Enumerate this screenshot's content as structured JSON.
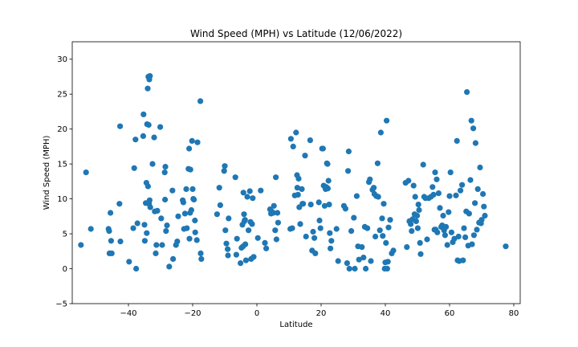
{
  "chart_data": {
    "type": "scatter",
    "title": "Wind Speed (MPH) vs Latitude (12/06/2022)",
    "xlabel": "Latitude",
    "ylabel": "Wind Speed (MPH)",
    "xlim": [
      -57.5,
      82
    ],
    "ylim": [
      -5,
      32.5
    ],
    "xticks": [
      -40,
      -20,
      0,
      20,
      40,
      60,
      80
    ],
    "yticks": [
      -5,
      0,
      5,
      10,
      15,
      20,
      25,
      30
    ],
    "xtick_labels": [
      "−40",
      "−20",
      "0",
      "20",
      "40",
      "60",
      "80"
    ],
    "ytick_labels": [
      "−5",
      "0",
      "5",
      "10",
      "15",
      "20",
      "25",
      "30"
    ],
    "grid": false,
    "marker_color": "#1f77b4",
    "points": [
      [
        -54.8,
        3.4
      ],
      [
        -53.2,
        13.8
      ],
      [
        -51.7,
        5.7
      ],
      [
        -46.2,
        5.7
      ],
      [
        -46.0,
        5.4
      ],
      [
        -45.9,
        2.2
      ],
      [
        -45.6,
        8.0
      ],
      [
        -45.4,
        4.0
      ],
      [
        -45.2,
        2.2
      ],
      [
        -42.6,
        20.4
      ],
      [
        -42.8,
        9.3
      ],
      [
        -42.5,
        3.9
      ],
      [
        -39.8,
        1.0
      ],
      [
        -38.5,
        5.8
      ],
      [
        -38.2,
        14.4
      ],
      [
        -37.8,
        18.5
      ],
      [
        -37.6,
        0.0
      ],
      [
        -37.2,
        6.5
      ],
      [
        -35.4,
        19.0
      ],
      [
        -35.3,
        22.1
      ],
      [
        -35.0,
        6.3
      ],
      [
        -34.9,
        4.0
      ],
      [
        -34.6,
        9.4
      ],
      [
        -34.4,
        12.3
      ],
      [
        -34.3,
        5.1
      ],
      [
        -34.2,
        20.7
      ],
      [
        -34.0,
        25.8
      ],
      [
        -33.9,
        11.8
      ],
      [
        -33.8,
        27.5
      ],
      [
        -33.7,
        20.6
      ],
      [
        -33.6,
        9.3
      ],
      [
        -33.5,
        27.1
      ],
      [
        -33.4,
        9.8
      ],
      [
        -33.3,
        27.6
      ],
      [
        -33.2,
        8.8
      ],
      [
        -32.5,
        15.0
      ],
      [
        -32.0,
        18.8
      ],
      [
        -31.8,
        8.2
      ],
      [
        -31.5,
        2.2
      ],
      [
        -31.3,
        3.4
      ],
      [
        -31.0,
        8.3
      ],
      [
        -30.1,
        20.3
      ],
      [
        -29.8,
        7.2
      ],
      [
        -29.5,
        3.4
      ],
      [
        -28.7,
        13.8
      ],
      [
        -28.6,
        9.9
      ],
      [
        -28.5,
        14.6
      ],
      [
        -28.3,
        5.4
      ],
      [
        -28.0,
        6.2
      ],
      [
        -27.3,
        0.3
      ],
      [
        -26.3,
        11.2
      ],
      [
        -26.1,
        1.4
      ],
      [
        -25.2,
        3.4
      ],
      [
        -24.8,
        3.9
      ],
      [
        -24.5,
        7.5
      ],
      [
        -23.1,
        9.8
      ],
      [
        -22.9,
        9.5
      ],
      [
        -22.7,
        5.7
      ],
      [
        -22.4,
        7.9
      ],
      [
        -22.0,
        11.4
      ],
      [
        -21.8,
        5.8
      ],
      [
        -21.3,
        14.3
      ],
      [
        -21.1,
        17.2
      ],
      [
        -21.0,
        4.3
      ],
      [
        -20.8,
        8.0
      ],
      [
        -20.7,
        14.2
      ],
      [
        -20.4,
        8.4
      ],
      [
        -20.2,
        18.3
      ],
      [
        -20.0,
        11.4
      ],
      [
        -19.8,
        10.0
      ],
      [
        -19.6,
        9.9
      ],
      [
        -19.3,
        6.9
      ],
      [
        -19.2,
        5.2
      ],
      [
        -18.7,
        4.1
      ],
      [
        -18.5,
        18.1
      ],
      [
        -17.6,
        24.0
      ],
      [
        -17.5,
        2.2
      ],
      [
        -17.3,
        1.4
      ],
      [
        -12.4,
        7.8
      ],
      [
        -11.7,
        11.6
      ],
      [
        -11.4,
        9.1
      ],
      [
        -10.2,
        14.0
      ],
      [
        -10.0,
        14.7
      ],
      [
        -9.8,
        5.5
      ],
      [
        -9.5,
        3.6
      ],
      [
        -9.1,
        2.8
      ],
      [
        -9.0,
        1.9
      ],
      [
        -8.8,
        7.2
      ],
      [
        -6.7,
        13.1
      ],
      [
        -6.4,
        2.0
      ],
      [
        -6.2,
        4.3
      ],
      [
        -5.1,
        0.8
      ],
      [
        -4.8,
        3.0
      ],
      [
        -4.5,
        6.3
      ],
      [
        -4.3,
        3.2
      ],
      [
        -4.2,
        10.9
      ],
      [
        -4.0,
        7.8
      ],
      [
        -3.9,
        6.8
      ],
      [
        -3.7,
        7.0
      ],
      [
        -3.6,
        3.5
      ],
      [
        -3.4,
        1.2
      ],
      [
        -3.0,
        10.3
      ],
      [
        -2.6,
        5.5
      ],
      [
        -2.2,
        11.1
      ],
      [
        -2.0,
        6.7
      ],
      [
        -1.8,
        1.4
      ],
      [
        -1.5,
        6.4
      ],
      [
        -1.3,
        10.1
      ],
      [
        -1.0,
        1.7
      ],
      [
        0.3,
        4.4
      ],
      [
        1.2,
        11.2
      ],
      [
        2.5,
        3.7
      ],
      [
        2.9,
        2.9
      ],
      [
        4.1,
        8.5
      ],
      [
        4.4,
        7.9
      ],
      [
        4.6,
        8.2
      ],
      [
        5.1,
        8.0
      ],
      [
        5.3,
        9.0
      ],
      [
        5.7,
        5.5
      ],
      [
        5.9,
        13.1
      ],
      [
        6.1,
        4.2
      ],
      [
        6.4,
        8.0
      ],
      [
        6.6,
        6.6
      ],
      [
        10.4,
        5.7
      ],
      [
        10.6,
        18.6
      ],
      [
        11.0,
        5.8
      ],
      [
        11.3,
        17.5
      ],
      [
        11.8,
        10.5
      ],
      [
        12.2,
        19.5
      ],
      [
        12.5,
        13.4
      ],
      [
        12.6,
        11.6
      ],
      [
        12.8,
        10.6
      ],
      [
        13.0,
        12.9
      ],
      [
        13.2,
        8.8
      ],
      [
        13.5,
        6.4
      ],
      [
        14.0,
        11.4
      ],
      [
        14.2,
        9.3
      ],
      [
        14.4,
        9.3
      ],
      [
        15.0,
        16.2
      ],
      [
        15.3,
        4.6
      ],
      [
        16.6,
        18.4
      ],
      [
        16.8,
        9.2
      ],
      [
        17.2,
        2.6
      ],
      [
        17.5,
        5.3
      ],
      [
        17.9,
        4.4
      ],
      [
        18.2,
        2.2
      ],
      [
        19.3,
        9.5
      ],
      [
        19.5,
        6.9
      ],
      [
        19.8,
        5.8
      ],
      [
        20.3,
        17.2
      ],
      [
        20.6,
        17.2
      ],
      [
        20.8,
        11.9
      ],
      [
        21.1,
        9.0
      ],
      [
        21.4,
        11.4
      ],
      [
        21.6,
        11.7
      ],
      [
        21.8,
        15.1
      ],
      [
        22.0,
        15.0
      ],
      [
        22.1,
        11.5
      ],
      [
        22.3,
        12.6
      ],
      [
        22.5,
        9.2
      ],
      [
        22.7,
        5.1
      ],
      [
        22.9,
        2.9
      ],
      [
        23.2,
        4.0
      ],
      [
        24.8,
        5.7
      ],
      [
        25.3,
        1.1
      ],
      [
        27.1,
        9.0
      ],
      [
        27.6,
        8.6
      ],
      [
        28.1,
        0.8
      ],
      [
        28.4,
        14.0
      ],
      [
        28.6,
        16.8
      ],
      [
        28.8,
        0.0
      ],
      [
        29.4,
        5.4
      ],
      [
        30.2,
        7.3
      ],
      [
        30.5,
        0.0
      ],
      [
        31.1,
        10.4
      ],
      [
        31.5,
        3.2
      ],
      [
        31.8,
        1.3
      ],
      [
        32.7,
        3.1
      ],
      [
        33.2,
        1.6
      ],
      [
        33.6,
        6.0
      ],
      [
        33.9,
        0.0
      ],
      [
        34.4,
        5.8
      ],
      [
        34.9,
        12.4
      ],
      [
        35.2,
        12.8
      ],
      [
        35.5,
        1.1
      ],
      [
        36.0,
        11.3
      ],
      [
        36.4,
        11.6
      ],
      [
        36.6,
        10.7
      ],
      [
        36.9,
        4.6
      ],
      [
        37.2,
        10.4
      ],
      [
        37.6,
        15.1
      ],
      [
        37.8,
        10.3
      ],
      [
        38.3,
        5.5
      ],
      [
        38.6,
        19.5
      ],
      [
        39.0,
        7.2
      ],
      [
        39.2,
        4.7
      ],
      [
        39.5,
        9.3
      ],
      [
        39.8,
        0.0
      ],
      [
        40.0,
        0.9
      ],
      [
        40.2,
        3.7
      ],
      [
        40.4,
        21.2
      ],
      [
        40.6,
        0.0
      ],
      [
        40.8,
        1.0
      ],
      [
        41.0,
        5.9
      ],
      [
        41.5,
        7.0
      ],
      [
        42.0,
        2.2
      ],
      [
        42.5,
        2.6
      ],
      [
        46.3,
        12.3
      ],
      [
        46.7,
        3.1
      ],
      [
        47.2,
        12.6
      ],
      [
        47.5,
        6.8
      ],
      [
        47.9,
        6.4
      ],
      [
        48.2,
        5.4
      ],
      [
        48.5,
        7.1
      ],
      [
        48.8,
        11.9
      ],
      [
        49.1,
        7.8
      ],
      [
        49.3,
        10.3
      ],
      [
        49.6,
        6.8
      ],
      [
        49.9,
        7.6
      ],
      [
        50.1,
        5.8
      ],
      [
        50.3,
        9.2
      ],
      [
        50.5,
        8.4
      ],
      [
        50.8,
        3.7
      ],
      [
        51.0,
        2.1
      ],
      [
        51.8,
        14.9
      ],
      [
        52.1,
        10.3
      ],
      [
        52.5,
        10.1
      ],
      [
        53.0,
        4.2
      ],
      [
        53.5,
        10.1
      ],
      [
        54.2,
        10.3
      ],
      [
        54.7,
        11.7
      ],
      [
        55.0,
        10.6
      ],
      [
        55.3,
        5.6
      ],
      [
        55.5,
        13.8
      ],
      [
        55.7,
        5.6
      ],
      [
        56.0,
        12.8
      ],
      [
        56.2,
        5.2
      ],
      [
        56.6,
        10.8
      ],
      [
        57.0,
        8.7
      ],
      [
        57.4,
        6.0
      ],
      [
        57.7,
        6.2
      ],
      [
        58.0,
        7.6
      ],
      [
        58.3,
        5.5
      ],
      [
        58.6,
        4.8
      ],
      [
        58.9,
        6.0
      ],
      [
        59.3,
        3.4
      ],
      [
        59.7,
        8.1
      ],
      [
        60.0,
        10.4
      ],
      [
        60.3,
        13.8
      ],
      [
        60.6,
        5.2
      ],
      [
        61.0,
        3.8
      ],
      [
        61.5,
        4.3
      ],
      [
        62.0,
        10.5
      ],
      [
        62.3,
        18.3
      ],
      [
        62.5,
        1.2
      ],
      [
        62.8,
        4.6
      ],
      [
        63.0,
        1.1
      ],
      [
        63.4,
        11.2
      ],
      [
        63.9,
        12.0
      ],
      [
        64.2,
        1.2
      ],
      [
        64.5,
        5.8
      ],
      [
        64.9,
        4.5
      ],
      [
        65.2,
        8.2
      ],
      [
        65.4,
        25.3
      ],
      [
        65.8,
        3.3
      ],
      [
        66.1,
        7.9
      ],
      [
        66.5,
        12.7
      ],
      [
        66.8,
        21.2
      ],
      [
        67.0,
        3.5
      ],
      [
        67.4,
        20.1
      ],
      [
        67.6,
        4.8
      ],
      [
        67.9,
        9.4
      ],
      [
        68.1,
        18.0
      ],
      [
        68.5,
        5.6
      ],
      [
        68.8,
        11.4
      ],
      [
        69.2,
        6.6
      ],
      [
        69.5,
        14.5
      ],
      [
        69.8,
        6.5
      ],
      [
        70.0,
        7.0
      ],
      [
        70.4,
        10.7
      ],
      [
        70.7,
        8.9
      ],
      [
        71.0,
        7.6
      ],
      [
        77.5,
        3.2
      ]
    ]
  }
}
